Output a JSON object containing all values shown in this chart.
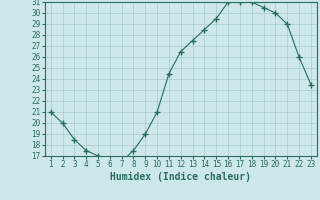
{
  "x": [
    1,
    2,
    3,
    4,
    5,
    6,
    7,
    8,
    9,
    10,
    11,
    12,
    13,
    14,
    15,
    16,
    17,
    18,
    19,
    20,
    21,
    22,
    23
  ],
  "y": [
    21,
    20,
    18.5,
    17.5,
    17,
    16.5,
    16.5,
    17.5,
    19,
    21,
    24.5,
    26.5,
    27.5,
    28.5,
    29.5,
    31,
    31,
    31,
    30.5,
    30,
    29,
    26,
    23.5
  ],
  "line_color": "#2d6b5e",
  "marker": "+",
  "marker_size": 4,
  "bg_color": "#cce8e8",
  "grid_color": "#aacccc",
  "xlabel": "Humidex (Indice chaleur)",
  "ylim": [
    17,
    31
  ],
  "xlim": [
    1,
    23
  ],
  "yticks": [
    17,
    18,
    19,
    20,
    21,
    22,
    23,
    24,
    25,
    26,
    27,
    28,
    29,
    30,
    31
  ],
  "xticks": [
    1,
    2,
    3,
    4,
    5,
    6,
    7,
    8,
    9,
    10,
    11,
    12,
    13,
    14,
    15,
    16,
    17,
    18,
    19,
    20,
    21,
    22,
    23
  ],
  "tick_fontsize": 5.5,
  "xlabel_fontsize": 7.0
}
